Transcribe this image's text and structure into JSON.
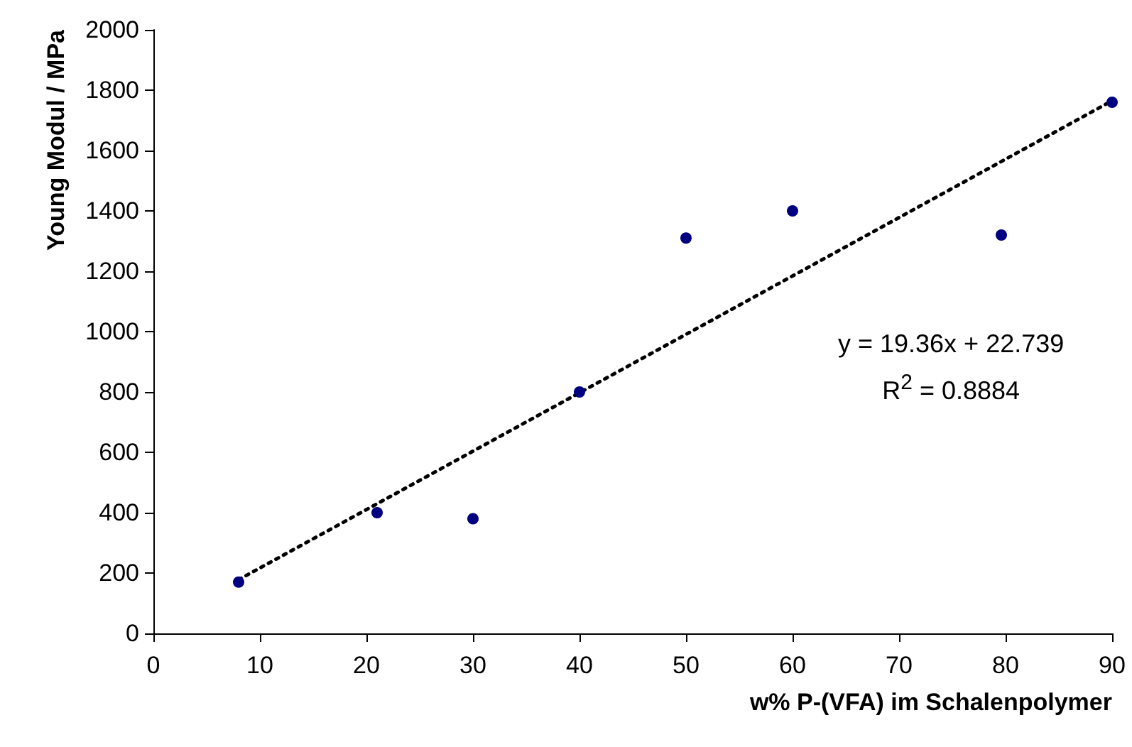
{
  "chart_data": {
    "type": "scatter",
    "xlabel": "w% P-(VFA) im Schalenpolymer",
    "ylabel": "Young Modul / MPa",
    "x": [
      8,
      21,
      30,
      40,
      50,
      60,
      79.6,
      90
    ],
    "series": [
      {
        "color": "#000080",
        "marker": "circle",
        "values": [
          170,
          400,
          380,
          800,
          1310,
          1400,
          1320,
          1760
        ]
      },
      {
        "type": "line",
        "color": "#000000",
        "line_style": "dotted",
        "marker": "none",
        "x": [
          8,
          90
        ],
        "values": [
          178,
          1765
        ]
      }
    ],
    "xlim": [
      0,
      90
    ],
    "xticks": [
      0,
      10,
      20,
      30,
      40,
      50,
      60,
      70,
      80,
      90
    ],
    "ylim": [
      0,
      2000
    ],
    "yticks": [
      0,
      200,
      400,
      600,
      800,
      1000,
      1200,
      1400,
      1600,
      1800,
      2000
    ],
    "grid": false,
    "annotations": [
      "y = 19.36x + 22.739",
      "R$^{2}$ = 0.8884"
    ]
  }
}
